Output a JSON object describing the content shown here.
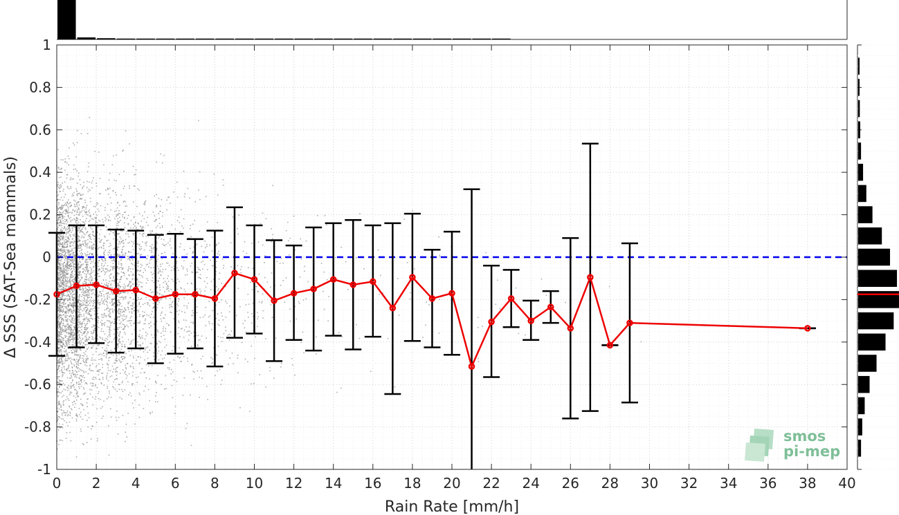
{
  "chart_data": {
    "type": "scatter",
    "xlabel": "Rain Rate [mm/h]",
    "ylabel": "Δ SSS (SAT-Sea mammals)",
    "xlim": [
      0,
      40
    ],
    "ylim": [
      -1,
      1
    ],
    "x_ticks": [
      0,
      2,
      4,
      6,
      8,
      10,
      12,
      14,
      16,
      18,
      20,
      22,
      24,
      26,
      28,
      30,
      32,
      34,
      36,
      38,
      40
    ],
    "y_ticks": [
      -1,
      -0.8,
      -0.6,
      -0.4,
      -0.2,
      0,
      0.2,
      0.4,
      0.6,
      0.8,
      1
    ],
    "grid": true,
    "reference_line": {
      "y": 0,
      "style": "dashed",
      "color": "#0000ee"
    },
    "mean_series": {
      "color": "#ee0000",
      "x": [
        0,
        1,
        2,
        3,
        4,
        5,
        6,
        7,
        8,
        9,
        10,
        11,
        12,
        13,
        14,
        15,
        16,
        17,
        18,
        19,
        20,
        21,
        22,
        23,
        24,
        25,
        26,
        27,
        28,
        29,
        38
      ],
      "y": [
        -0.175,
        -0.135,
        -0.13,
        -0.16,
        -0.155,
        -0.195,
        -0.175,
        -0.175,
        -0.195,
        -0.075,
        -0.105,
        -0.205,
        -0.17,
        -0.15,
        -0.105,
        -0.13,
        -0.115,
        -0.24,
        -0.095,
        -0.195,
        -0.17,
        -0.515,
        -0.305,
        -0.195,
        -0.3,
        -0.235,
        -0.335,
        -0.095,
        -0.415,
        -0.31,
        -0.335
      ]
    },
    "error_bars": {
      "x": [
        0,
        1,
        2,
        3,
        4,
        5,
        6,
        7,
        8,
        9,
        10,
        11,
        12,
        13,
        14,
        15,
        16,
        17,
        18,
        19,
        20,
        21,
        22,
        23,
        24,
        25,
        26,
        27,
        28,
        29,
        38
      ],
      "lower": [
        -0.465,
        -0.425,
        -0.405,
        -0.45,
        -0.43,
        -0.5,
        -0.455,
        -0.43,
        -0.515,
        -0.38,
        -0.36,
        -0.49,
        -0.39,
        -0.44,
        -0.37,
        -0.435,
        -0.375,
        -0.645,
        -0.395,
        -0.425,
        -0.46,
        -1.0,
        -0.565,
        -0.33,
        -0.39,
        -0.31,
        -0.76,
        -0.725,
        -0.415,
        -0.685,
        -0.335
      ],
      "upper": [
        0.115,
        0.15,
        0.15,
        0.13,
        0.125,
        0.105,
        0.11,
        0.085,
        0.125,
        0.235,
        0.15,
        0.08,
        0.055,
        0.14,
        0.16,
        0.175,
        0.15,
        0.16,
        0.205,
        0.035,
        0.12,
        0.32,
        -0.04,
        -0.06,
        -0.205,
        -0.16,
        0.09,
        0.535,
        -0.415,
        0.065,
        -0.335
      ]
    },
    "scatter_points": {
      "color": "#8c8c8c",
      "description_counts_by_x": [
        [
          0,
          1,
          2000
        ],
        [
          1,
          3,
          1600
        ],
        [
          3,
          5,
          900
        ],
        [
          5,
          8,
          500
        ],
        [
          8,
          12,
          200
        ],
        [
          12,
          22,
          80
        ],
        [
          22,
          30,
          15
        ]
      ]
    },
    "top_histogram": {
      "bin_edges": [
        0,
        1,
        2,
        3,
        4,
        5,
        6,
        7,
        8,
        9,
        10,
        11,
        12,
        13,
        14,
        15,
        16,
        17,
        18,
        19,
        20,
        21,
        22,
        23
      ],
      "relative_heights": [
        1.0,
        0.05,
        0.03,
        0.02,
        0.015,
        0.012,
        0.01,
        0.008,
        0.006,
        0.005,
        0.004,
        0.003,
        0.003,
        0.002,
        0.002,
        0.002,
        0.002,
        0.002,
        0.001,
        0.001,
        0.001,
        0.001,
        0.001
      ]
    },
    "right_histogram": {
      "bin_centers": [
        0.9,
        0.8,
        0.7,
        0.6,
        0.5,
        0.4,
        0.3,
        0.2,
        0.1,
        0.0,
        -0.1,
        -0.2,
        -0.3,
        -0.4,
        -0.5,
        -0.6,
        -0.7,
        -0.8,
        -0.9
      ],
      "relative_widths": [
        0.03,
        0.03,
        0.04,
        0.05,
        0.07,
        0.12,
        0.2,
        0.35,
        0.58,
        0.78,
        0.95,
        1.0,
        0.87,
        0.67,
        0.45,
        0.28,
        0.16,
        0.1,
        0.07
      ],
      "mean_line": {
        "y": -0.175,
        "color": "#ee0000"
      }
    }
  },
  "logo": {
    "line1": "smos",
    "line2": "pi-mep",
    "color": "#7fbf98"
  }
}
